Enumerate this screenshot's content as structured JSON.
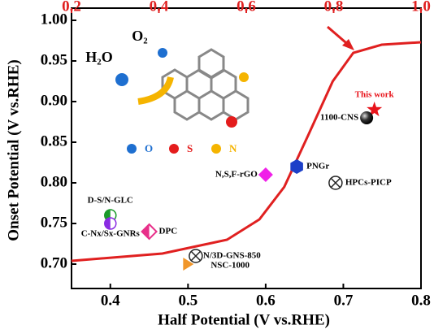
{
  "chart_data": {
    "type": "scatter",
    "x_label": "Half Potential (V vs.RHE)",
    "y_label": "Onset Potential (V vs.RHE)",
    "xlim": [
      0.35,
      0.8
    ],
    "xticks": [
      0.4,
      0.5,
      0.6,
      0.7,
      0.8
    ],
    "ylim": [
      0.67,
      1.015
    ],
    "yticks": [
      {
        "value": 0.7,
        "label": "0.70"
      },
      {
        "value": 0.75,
        "label": "0.75"
      },
      {
        "value": 0.8,
        "label": "0.80"
      },
      {
        "value": 0.85,
        "label": "0.85"
      },
      {
        "value": 0.9,
        "label": "0.90"
      },
      {
        "value": 0.95,
        "label": "0.95"
      },
      {
        "value": 1.0,
        "label": "1.00"
      }
    ],
    "x2lim": [
      0.2,
      1.0
    ],
    "x2ticks": [
      0.2,
      0.4,
      0.6,
      0.8,
      {
        "value": 1.0,
        "label": "1.0"
      }
    ],
    "x2_color": "#e02020",
    "series": [
      {
        "name": "This work",
        "color": "#e8141b",
        "marker": "star",
        "x": [
          0.74
        ],
        "values": [
          0.89
        ]
      },
      {
        "name": "1100-CNS",
        "color": "#111111",
        "marker": "sphere",
        "x": [
          0.73
        ],
        "values": [
          0.88
        ]
      },
      {
        "name": "PNGr",
        "color": "#1c3fc8",
        "marker": "hexagon",
        "x": [
          0.64
        ],
        "values": [
          0.82
        ]
      },
      {
        "name": "HPCs-PICP",
        "color": "#222222",
        "marker": "circle-x",
        "x": [
          0.69
        ],
        "values": [
          0.8
        ]
      },
      {
        "name": "N,S,F-rGO",
        "color": "#f020e8",
        "marker": "diamond",
        "x": [
          0.6
        ],
        "values": [
          0.81
        ]
      },
      {
        "name": "D-S/N-GLC",
        "color": "#1a9a2a",
        "marker": "half-circle",
        "x": [
          0.4
        ],
        "values": [
          0.76
        ]
      },
      {
        "name": "C-Nx/Sx-GNRs",
        "color": "#8a2be2",
        "marker": "half-circle",
        "x": [
          0.4
        ],
        "values": [
          0.75
        ]
      },
      {
        "name": "DPC",
        "color": "#e8308a",
        "marker": "half-diamond",
        "x": [
          0.45
        ],
        "values": [
          0.74
        ]
      },
      {
        "name": "N/3D-GNS-850",
        "color": "#222222",
        "marker": "circle-x",
        "x": [
          0.51
        ],
        "values": [
          0.71
        ]
      },
      {
        "name": "NSC-1000",
        "color": "#f0962a",
        "marker": "triangle",
        "x": [
          0.5
        ],
        "values": [
          0.7
        ]
      }
    ],
    "curve": {
      "color": "#e02020",
      "axis": "x2",
      "x": [
        0.2,
        0.408,
        0.556,
        0.63,
        0.687,
        0.743,
        0.798,
        0.845,
        0.91,
        1.0
      ],
      "values": [
        0.704,
        0.713,
        0.73,
        0.755,
        0.795,
        0.86,
        0.925,
        0.96,
        0.97,
        0.973
      ]
    },
    "inset": {
      "labels": [
        "H₂O",
        "O₂"
      ],
      "legend": [
        {
          "label": "O",
          "color": "#1e6fd0"
        },
        {
          "label": "S",
          "color": "#e41c1c"
        },
        {
          "label": "N",
          "color": "#f5b400"
        }
      ]
    }
  }
}
